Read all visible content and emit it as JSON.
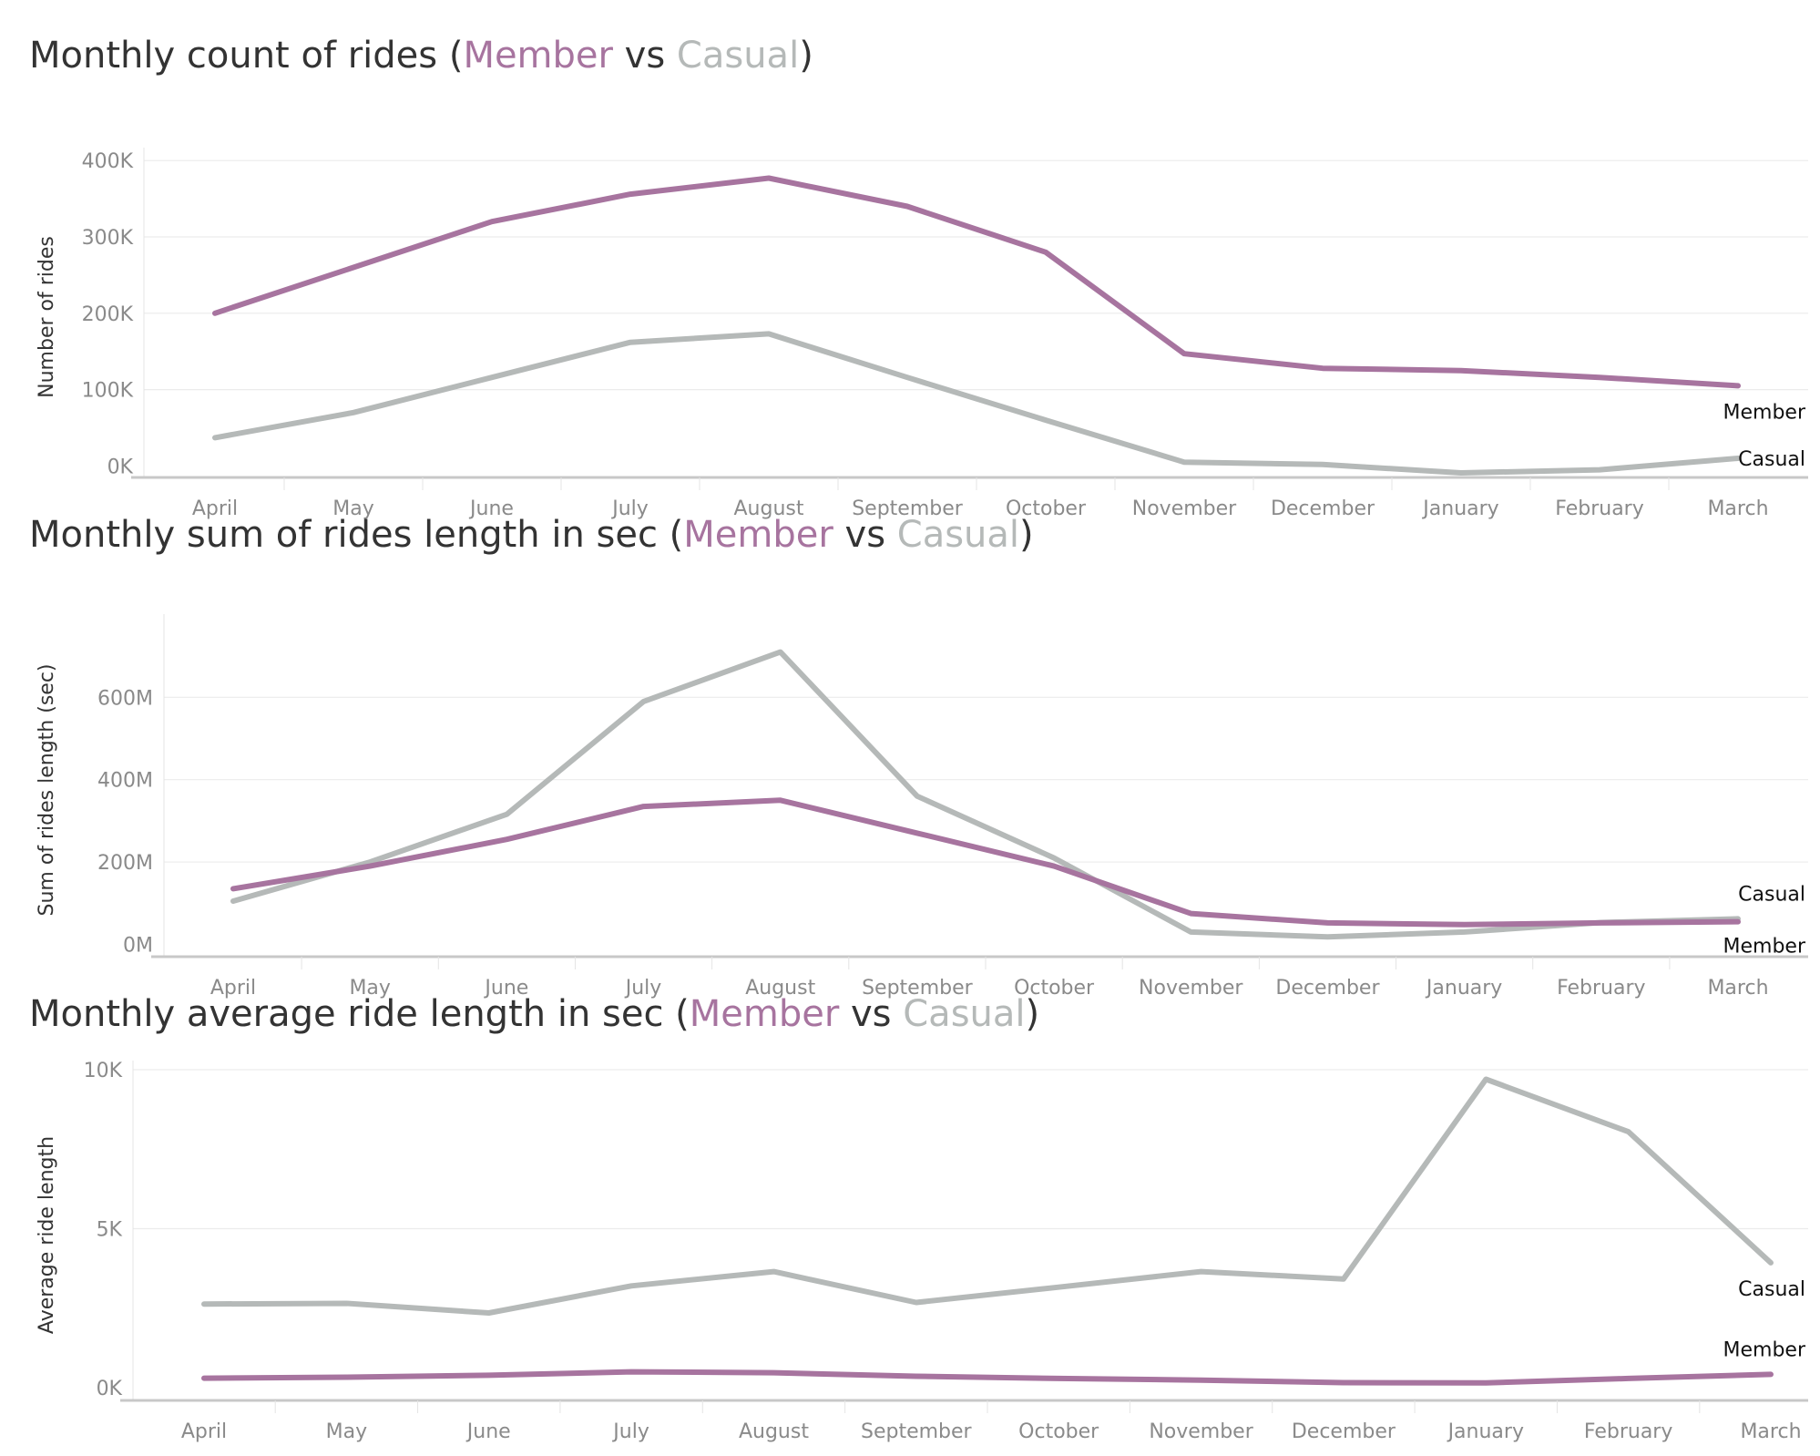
{
  "colors": {
    "member": "#a7749f",
    "casual": "#b5b9b8",
    "title_text": "#333333"
  },
  "panels": [
    {
      "title_prefix": "Monthly count of rides (",
      "title_member": "Member",
      "title_vs": " vs ",
      "title_casual": "Casual",
      "title_suffix": ")"
    },
    {
      "title_prefix": "Monthly sum of rides length in sec (",
      "title_member": "Member",
      "title_vs": " vs ",
      "title_casual": "Casual",
      "title_suffix": ")"
    },
    {
      "title_prefix": "Monthly average ride length in sec (",
      "title_member": "Member",
      "title_vs": " vs ",
      "title_casual": "Casual",
      "title_suffix": ")"
    }
  ],
  "chart_data": [
    {
      "type": "line",
      "title": "Monthly count of rides (Member vs Casual)",
      "ylabel": "Number of rides",
      "xlabel": "",
      "categories": [
        "April",
        "May",
        "June",
        "July",
        "August",
        "September",
        "October",
        "November",
        "December",
        "January",
        "February",
        "March"
      ],
      "yticks": [
        0,
        100000,
        200000,
        300000,
        400000
      ],
      "ytick_labels": [
        "0K",
        "100K",
        "200K",
        "300K",
        "400K"
      ],
      "ylim": [
        -15000,
        405000
      ],
      "grid": true,
      "series": [
        {
          "name": "Member",
          "color": "#a7749f",
          "values": [
            200000,
            260000,
            320000,
            356000,
            377000,
            340000,
            280000,
            147000,
            128000,
            125000,
            116000,
            105000
          ]
        },
        {
          "name": "Casual",
          "color": "#b5b9b8",
          "values": [
            37000,
            70000,
            116000,
            162000,
            173000,
            116000,
            60000,
            5000,
            2000,
            -9000,
            -5000,
            10000
          ]
        }
      ],
      "end_labels": [
        "Member",
        "Casual"
      ]
    },
    {
      "type": "line",
      "title": "Monthly sum of rides length in sec (Member vs Casual)",
      "ylabel": "Sum of  rides length (sec)",
      "xlabel": "",
      "categories": [
        "April",
        "May",
        "June",
        "July",
        "August",
        "September",
        "October",
        "November",
        "December",
        "January",
        "February",
        "March"
      ],
      "yticks": [
        0,
        200000000,
        400000000,
        600000000
      ],
      "ytick_labels": [
        "0M",
        "200M",
        "400M",
        "600M"
      ],
      "ylim": [
        -30000000,
        780000000
      ],
      "grid": true,
      "series": [
        {
          "name": "Member",
          "color": "#a7749f",
          "values": [
            135000000,
            190000000,
            255000000,
            335000000,
            350000000,
            270000000,
            190000000,
            75000000,
            52000000,
            48000000,
            52000000,
            55000000
          ]
        },
        {
          "name": "Casual",
          "color": "#b5b9b8",
          "values": [
            105000000,
            200000000,
            316000000,
            590000000,
            710000000,
            360000000,
            210000000,
            30000000,
            18000000,
            30000000,
            53000000,
            62000000
          ]
        }
      ],
      "end_labels": [
        "Casual",
        "Member"
      ]
    },
    {
      "type": "line",
      "title": "Monthly average ride length in sec (Member vs Casual)",
      "ylabel": "Average ride length",
      "xlabel": "",
      "categories": [
        "April",
        "May",
        "June",
        "July",
        "August",
        "September",
        "October",
        "November",
        "December",
        "January",
        "February",
        "March"
      ],
      "yticks": [
        0,
        5000,
        10000
      ],
      "ytick_labels": [
        "0K",
        "5K",
        "10K"
      ],
      "ylim": [
        -400,
        10000
      ],
      "grid": true,
      "series": [
        {
          "name": "Member",
          "color": "#a7749f",
          "values": [
            300,
            330,
            390,
            500,
            470,
            360,
            290,
            240,
            160,
            150,
            290,
            420
          ]
        },
        {
          "name": "Casual",
          "color": "#b5b9b8",
          "values": [
            2630,
            2650,
            2350,
            3200,
            3650,
            2680,
            3160,
            3650,
            3420,
            9700,
            8050,
            3930
          ]
        }
      ],
      "end_labels": [
        "Casual",
        "Member"
      ]
    }
  ]
}
